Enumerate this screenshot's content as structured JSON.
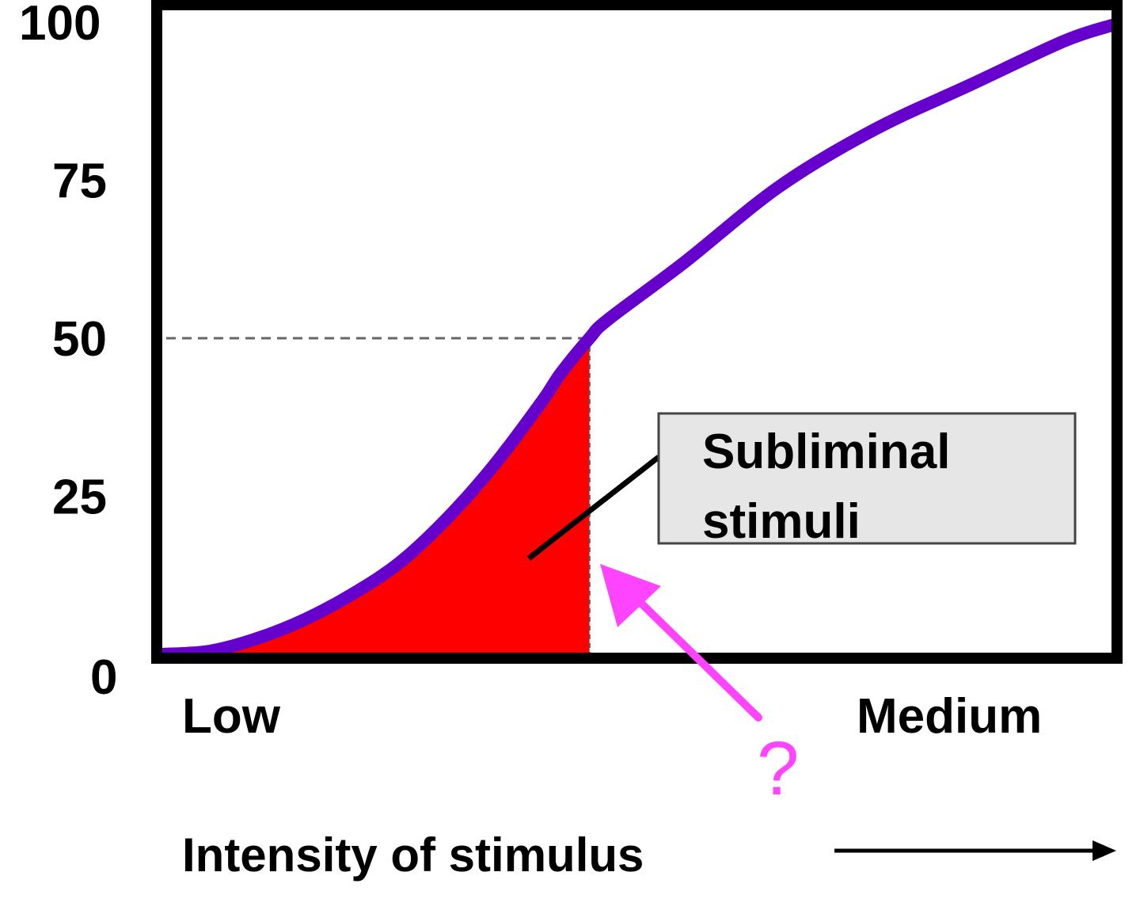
{
  "colors": {
    "curve": "#6600cc",
    "shaded_area": "#ff0000",
    "callout_fill": "#e6e6e6",
    "arrow": "#ff44ff"
  },
  "chart_data": {
    "type": "line",
    "ylim": [
      0,
      100
    ],
    "xlim": [
      0,
      100
    ],
    "y_ticks": [
      "0",
      "25",
      "50",
      "75",
      "100"
    ],
    "x_categories": [
      "Low",
      "Medium"
    ],
    "xlabel": "Intensity of stimulus",
    "ylabel": "",
    "grid": false,
    "series": [
      {
        "x": [
          0,
          5,
          10,
          15,
          20,
          25,
          30,
          35,
          40,
          42,
          45,
          47,
          55,
          65,
          75,
          85,
          95,
          100
        ],
        "y": [
          0,
          0.5,
          2.5,
          5.5,
          9.5,
          14.5,
          21.5,
          30,
          40,
          44.5,
          50,
          53,
          62,
          74,
          83,
          90,
          97,
          99.5
        ]
      }
    ],
    "threshold": {
      "x": 45,
      "y": 50
    },
    "shaded_region": {
      "x_from": 0,
      "x_to": 45,
      "label": "Subliminal stimuli"
    },
    "annotation": {
      "text": "?"
    }
  },
  "callout": {
    "line1": "Subliminal",
    "line2": "stimuli"
  },
  "annotation": {
    "mark": "?"
  }
}
